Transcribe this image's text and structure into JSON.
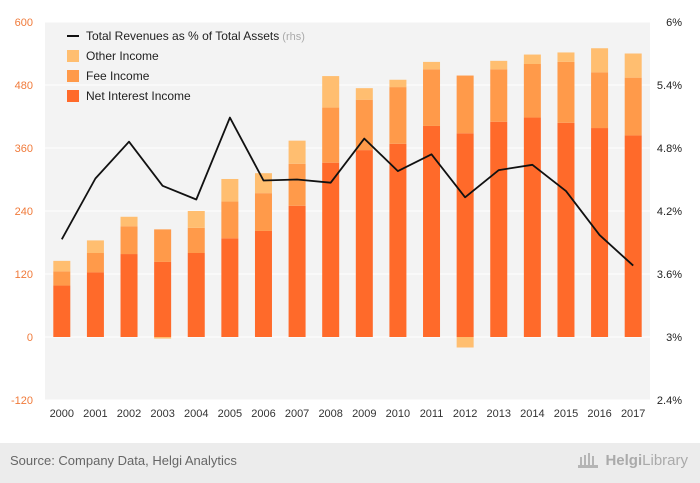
{
  "chart_data": {
    "type": "bar",
    "stacked": true,
    "categories": [
      "2000",
      "2001",
      "2002",
      "2003",
      "2004",
      "2005",
      "2006",
      "2007",
      "2008",
      "2009",
      "2010",
      "2011",
      "2012",
      "2013",
      "2014",
      "2015",
      "2016",
      "2017"
    ],
    "series": [
      {
        "name": "Net Interest Income",
        "color": "#ff6a2a",
        "values": [
          98,
          123,
          158,
          143,
          160,
          188,
          202,
          250,
          332,
          356,
          368,
          402,
          388,
          410,
          418,
          408,
          398,
          384
        ]
      },
      {
        "name": "Fee Income",
        "color": "#ff9a4a",
        "values": [
          27,
          37,
          53,
          62,
          48,
          70,
          72,
          80,
          105,
          96,
          108,
          108,
          110,
          100,
          102,
          116,
          106,
          110
        ]
      },
      {
        "name": "Other Income",
        "color": "#ffbe70",
        "values": [
          20,
          24,
          18,
          0,
          32,
          43,
          38,
          44,
          60,
          22,
          14,
          14,
          0,
          16,
          18,
          18,
          46,
          46
        ]
      },
      {
        "name": "Other Income (negative)",
        "color": "#ffbe70",
        "values": [
          0,
          0,
          0,
          -3,
          0,
          0,
          0,
          0,
          0,
          0,
          0,
          0,
          -20,
          0,
          0,
          0,
          0,
          0
        ]
      }
    ],
    "line_series": {
      "name": "Total Revenues as % of Total Assets",
      "axis": "right",
      "color": "#111111",
      "values": [
        3.93,
        4.51,
        4.86,
        4.44,
        4.31,
        5.09,
        4.49,
        4.5,
        4.47,
        4.89,
        4.58,
        4.74,
        4.33,
        4.59,
        4.64,
        4.39,
        3.97,
        3.68
      ]
    },
    "y_left": {
      "min": -120,
      "max": 600,
      "ticks": [
        -120,
        0,
        120,
        240,
        360,
        480,
        600
      ]
    },
    "y_right": {
      "min": 2.4,
      "max": 6.0,
      "ticks": [
        "2.4%",
        "3%",
        "3.6%",
        "4.2%",
        "4.8%",
        "5.4%",
        "6%"
      ]
    },
    "left_tick_labels": [
      "-120",
      "0",
      "120",
      "240",
      "360",
      "480",
      "600"
    ],
    "legend": [
      {
        "label": "Total Revenues as % of Total Assets",
        "note": "(rhs)",
        "kind": "line",
        "color": "#111111"
      },
      {
        "label": "Other Income",
        "kind": "box",
        "color": "#ffbe70"
      },
      {
        "label": "Fee Income",
        "kind": "box",
        "color": "#ff9a4a"
      },
      {
        "label": "Net Interest Income",
        "kind": "box",
        "color": "#ff6a2a"
      }
    ],
    "legend_position": "top-left",
    "grid": true
  },
  "footer": {
    "source": "Source: Company Data, Helgi Analytics",
    "brand_part1": "Helgi",
    "brand_part2": "Library"
  }
}
